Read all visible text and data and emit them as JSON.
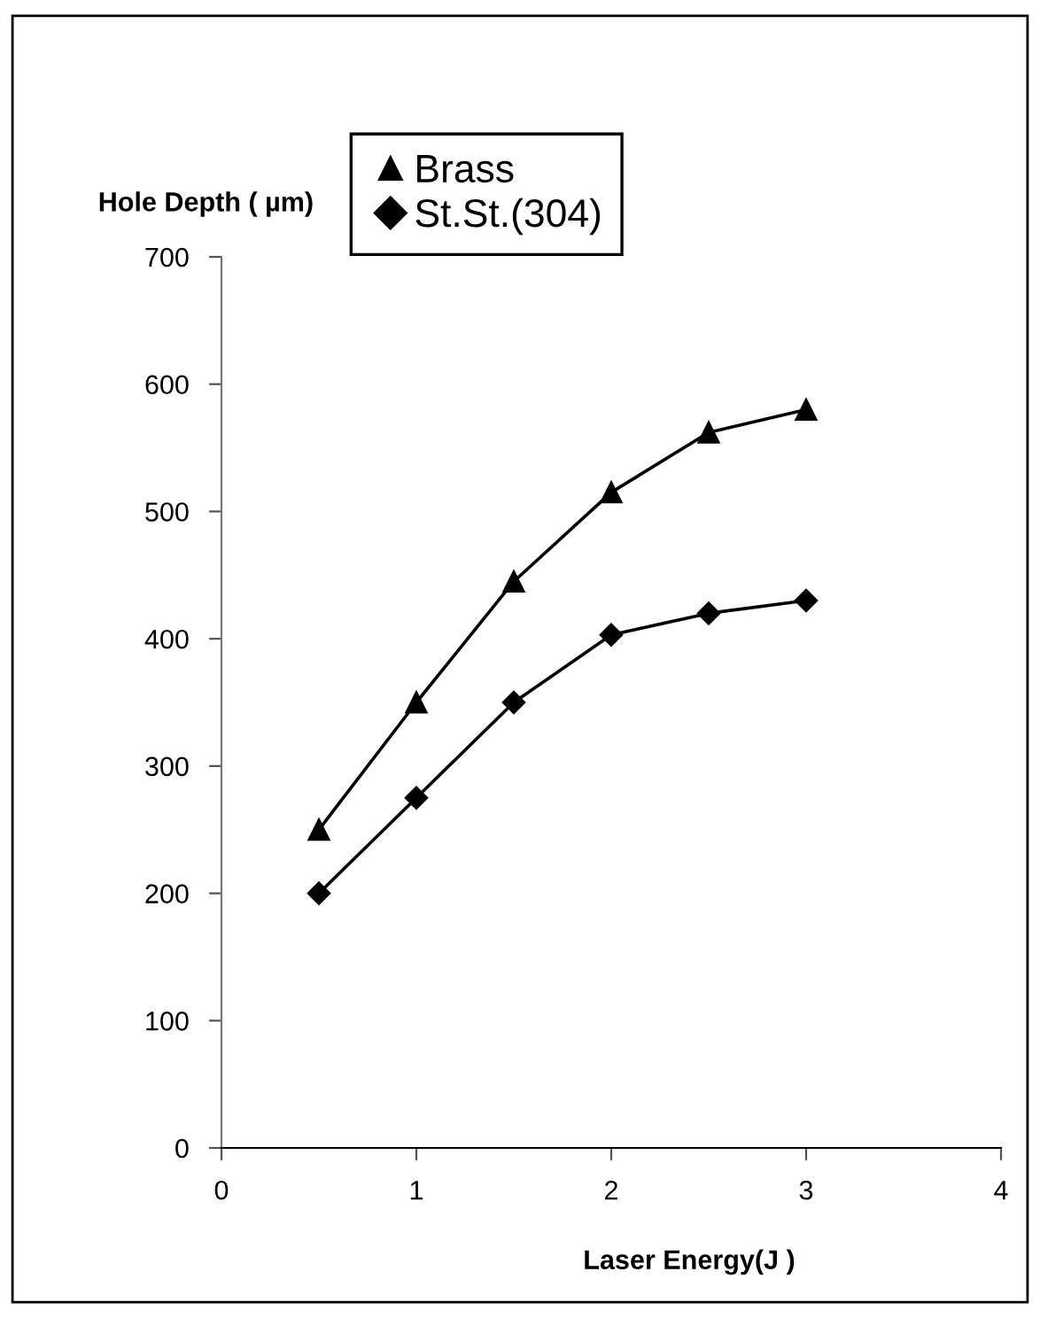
{
  "chart_data": {
    "type": "line",
    "xlabel": "Laser Energy(J )",
    "ylabel": "Hole Depth ( µm)",
    "x": [
      0.5,
      1,
      1.5,
      2,
      2.5,
      3
    ],
    "series": [
      {
        "name": "Brass",
        "color": "#000000",
        "marker": "triangle",
        "values": [
          250,
          350,
          445,
          515,
          562,
          580
        ]
      },
      {
        "name": "St.St.(304)",
        "color": "#000000",
        "marker": "diamond",
        "values": [
          200,
          275,
          350,
          403,
          420,
          430
        ]
      }
    ],
    "xlim": [
      0,
      4
    ],
    "xticks": [
      0,
      1,
      2,
      3,
      4
    ],
    "ylim": [
      0,
      700
    ],
    "yticks": [
      0,
      100,
      200,
      300,
      400,
      500,
      600,
      700
    ],
    "grid": false,
    "legend": "top",
    "line_style": "solid"
  }
}
